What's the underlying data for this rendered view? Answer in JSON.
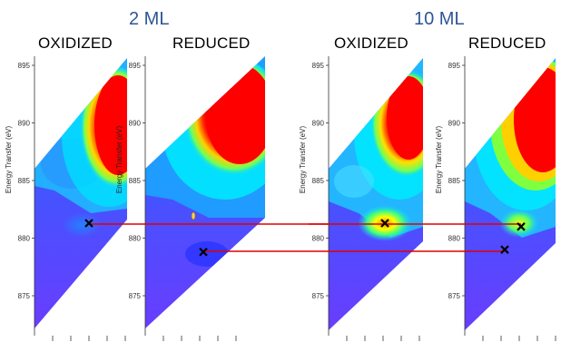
{
  "groups": [
    {
      "label": "2 ML"
    },
    {
      "label": "10 ML"
    }
  ],
  "chart_data": [
    {
      "type": "heatmap",
      "title": "OXIDIZED",
      "group": "2 ML",
      "ylabel": "Energy Transfer (eV)",
      "ylim": [
        871,
        896
      ],
      "yticks": [
        875,
        880,
        885,
        890,
        895
      ],
      "marker": {
        "energy": 881.3
      }
    },
    {
      "type": "heatmap",
      "title": "REDUCED",
      "group": "2 ML",
      "ylabel": "Energy Transfer (eV)",
      "ylim": [
        871,
        896
      ],
      "yticks": [
        875,
        880,
        885,
        890,
        895
      ],
      "marker": {
        "energy": 878.8
      }
    },
    {
      "type": "heatmap",
      "title": "OXIDIZED",
      "group": "10 ML",
      "ylabel": "Energy Transfer (eV)",
      "ylim": [
        871,
        896
      ],
      "yticks": [
        875,
        880,
        885,
        890,
        895
      ],
      "marker": {
        "energy": 881.3
      }
    },
    {
      "type": "heatmap",
      "title": "REDUCED",
      "group": "10 ML",
      "ylabel": "Energy Transfer (eV)",
      "ylim": [
        871,
        896
      ],
      "yticks": [
        875,
        880,
        885,
        890,
        895
      ],
      "marker": {
        "energy": 881.0
      },
      "marker2": {
        "energy": 879.0
      }
    }
  ],
  "colors": {
    "high": "#ff0000",
    "mid": "#ffff00",
    "low_mid": "#00e0ff",
    "low": "#7a4dff",
    "connector": "#e00000",
    "group_title": "#2f5597"
  }
}
